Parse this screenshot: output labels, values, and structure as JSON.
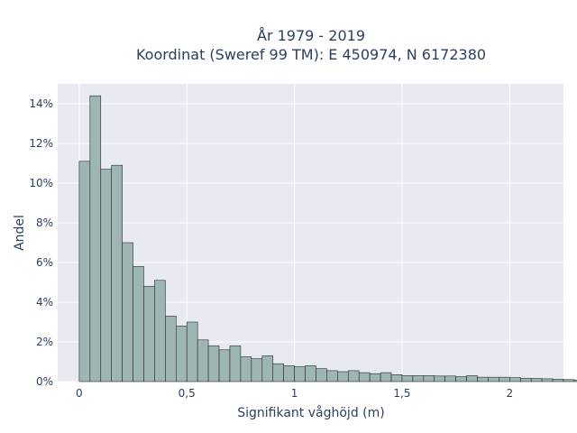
{
  "chart_data": {
    "type": "bar",
    "title_line1": "År 1979 - 2019",
    "title_line2": "Koordinat (Sweref 99 TM): E 450974, N 6172380",
    "xlabel": "Signifikant våghöjd (m)",
    "ylabel": "Andel",
    "xlim": [
      -0.1,
      2.25
    ],
    "ylim": [
      0,
      15
    ],
    "xticks": [
      0,
      0.5,
      1,
      1.5,
      2
    ],
    "xtick_labels": [
      "0",
      "0,5",
      "1",
      "1,5",
      "2"
    ],
    "yticks": [
      0,
      2,
      4,
      6,
      8,
      10,
      12,
      14
    ],
    "ytick_labels": [
      "0%",
      "2%",
      "4%",
      "6%",
      "8%",
      "10%",
      "12%",
      "14%"
    ],
    "bin_start": 0,
    "bin_width": 0.05,
    "values": [
      11.1,
      14.4,
      10.7,
      10.9,
      7.0,
      5.8,
      4.8,
      5.1,
      3.3,
      2.8,
      3.0,
      2.1,
      1.8,
      1.6,
      1.8,
      1.25,
      1.15,
      1.3,
      0.9,
      0.8,
      0.75,
      0.8,
      0.65,
      0.55,
      0.5,
      0.55,
      0.45,
      0.4,
      0.45,
      0.35,
      0.3,
      0.3,
      0.3,
      0.28,
      0.28,
      0.25,
      0.3,
      0.22,
      0.22,
      0.22,
      0.2,
      0.17,
      0.16,
      0.14,
      0.12,
      0.1,
      0.08,
      0.05,
      0.04
    ],
    "grid": true,
    "bar_color": "#9db5b3",
    "bar_edge_color": "#2b2b2b",
    "plot_bg": "#e9e9f1"
  }
}
